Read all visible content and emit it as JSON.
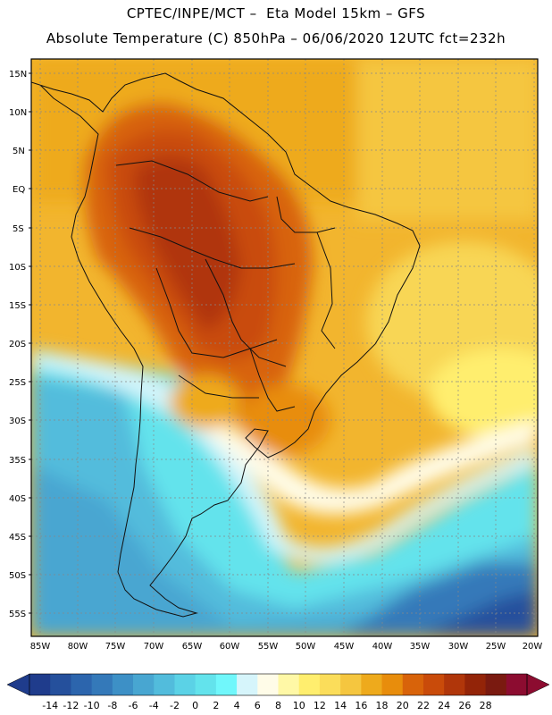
{
  "header": {
    "line1": "CPTEC/INPE/MCT –  Eta Model 15km – GFS",
    "line2": "Absolute Temperature (C) 850hPa – 06/06/2020 12UTC fct=232h"
  },
  "map": {
    "lat_labels": [
      "15N",
      "10N",
      "5N",
      "EQ",
      "5S",
      "10S",
      "15S",
      "20S",
      "25S",
      "30S",
      "35S",
      "40S",
      "45S",
      "50S",
      "55S"
    ],
    "lon_labels": [
      "85W",
      "80W",
      "75W",
      "70W",
      "65W",
      "60W",
      "55W",
      "50W",
      "45W",
      "40W",
      "35W",
      "30W",
      "25W",
      "20W"
    ]
  },
  "colorbar": {
    "labels": [
      "-14",
      "-12",
      "-10",
      "-8",
      "-6",
      "-4",
      "-2",
      "0",
      "2",
      "4",
      "6",
      "8",
      "10",
      "12",
      "14",
      "16",
      "18",
      "20",
      "22",
      "24",
      "26",
      "28"
    ],
    "colors": [
      "#1f3c8c",
      "#25509c",
      "#2c65ad",
      "#3479b9",
      "#3d90c6",
      "#48a6d1",
      "#52bcdc",
      "#5bd2e6",
      "#63e3ec",
      "#70f7fb",
      "#d6f5fb",
      "#fffce8",
      "#fff8a6",
      "#ffee6e",
      "#fbdd5a",
      "#f5c63f",
      "#eeaa1c",
      "#e88d0c",
      "#d8630a",
      "#c94b0a",
      "#b0360a",
      "#932408",
      "#7a1a10",
      "#8c0c30"
    ]
  }
}
